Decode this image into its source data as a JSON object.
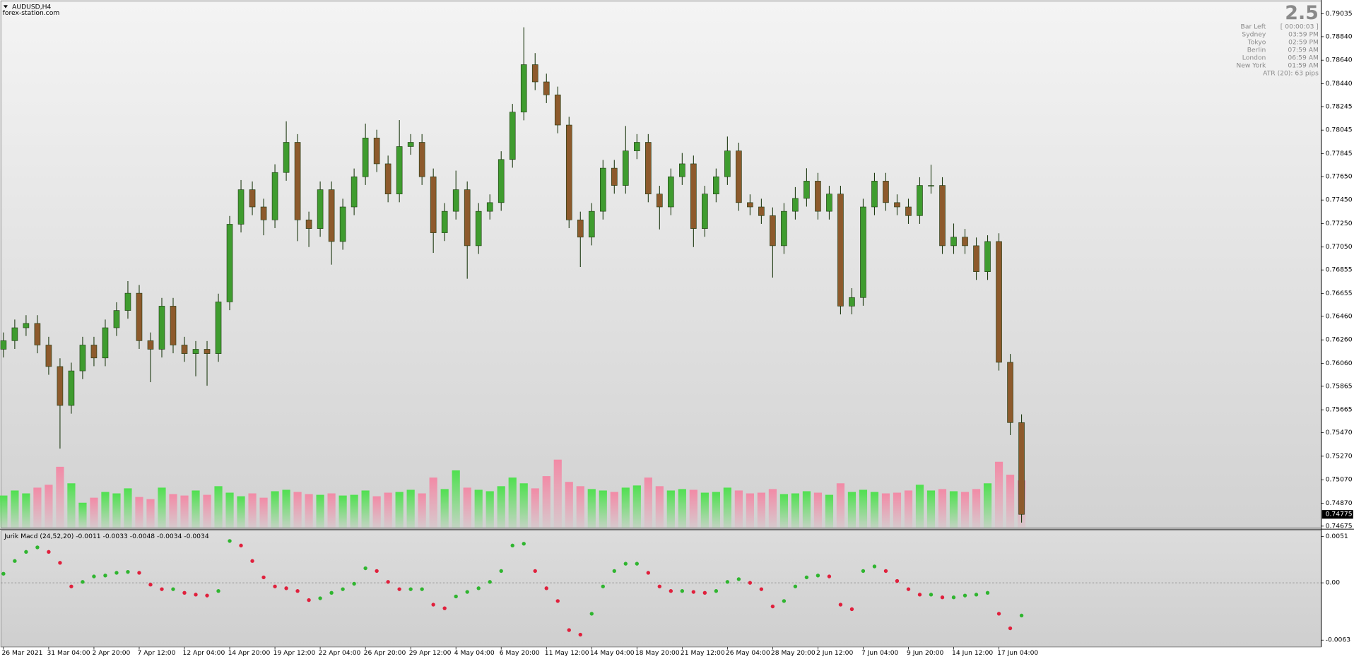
{
  "chart_data": [
    {
      "type": "candlestick",
      "title": "AUDUSD,H4",
      "subtitle": "forex-station.com",
      "categories": [
        "26 Mar 2021",
        null,
        null,
        null,
        "31 Mar 04:00",
        null,
        null,
        null,
        "2 Apr 20:00",
        null,
        null,
        null,
        "7 Apr 12:00",
        null,
        null,
        null,
        "12 Apr 04:00",
        null,
        null,
        null,
        "14 Apr 20:00",
        null,
        null,
        null,
        "19 Apr 12:00",
        null,
        null,
        null,
        "22 Apr 04:00",
        null,
        null,
        null,
        "26 Apr 20:00",
        null,
        null,
        null,
        "29 Apr 12:00",
        null,
        null,
        null,
        "4 May 04:00",
        null,
        null,
        null,
        "6 May 20:00",
        null,
        null,
        null,
        "11 May 12:00",
        null,
        null,
        null,
        "14 May 04:00",
        null,
        null,
        null,
        "18 May 20:00",
        null,
        null,
        null,
        "21 May 12:00",
        null,
        null,
        null,
        "26 May 04:00",
        null,
        null,
        null,
        "28 May 20:00",
        null,
        null,
        null,
        "2 Jun 12:00",
        null,
        null,
        null,
        "7 Jun 04:00",
        null,
        null,
        null,
        "9 Jun 20:00",
        null,
        null,
        null,
        "14 Jun 12:00",
        null,
        null,
        null,
        "17 Jun 04:00",
        null,
        null
      ],
      "open": [
        0.7618,
        0.76253,
        0.76363,
        0.764,
        0.76216,
        0.76033,
        0.75702,
        0.75996,
        0.76216,
        0.76106,
        0.76363,
        0.7651,
        0.76657,
        0.76253,
        0.7618,
        0.76547,
        0.76216,
        0.76143,
        0.7618,
        0.76143,
        0.76583,
        0.77244,
        0.77538,
        0.77391,
        0.77281,
        0.77684,
        0.77941,
        0.77281,
        0.77207,
        0.77538,
        0.77097,
        0.77391,
        0.77648,
        0.77978,
        0.77758,
        0.77501,
        0.77905,
        0.77941,
        0.77648,
        0.77171,
        0.77354,
        0.77538,
        0.77061,
        0.77354,
        0.77428,
        0.77795,
        0.78198,
        0.78602,
        0.78455,
        0.78345,
        0.78088,
        0.77281,
        0.77134,
        0.77354,
        0.77721,
        0.77574,
        0.77868,
        0.77941,
        0.77501,
        0.77391,
        0.77648,
        0.77758,
        0.77207,
        0.77501,
        0.77648,
        0.77868,
        0.77428,
        0.77391,
        0.77317,
        0.77061,
        0.77354,
        0.77464,
        0.77611,
        0.77354,
        0.77501,
        0.76547,
        0.7662,
        0.77391,
        0.77611,
        0.77428,
        0.77391,
        0.77317,
        0.77574,
        0.77574,
        0.77061,
        0.77134,
        0.77061,
        0.7684,
        0.77097,
        0.76069,
        0.75556
      ],
      "high": [
        0.76323,
        0.76433,
        0.7647,
        0.7647,
        0.76286,
        0.76103,
        0.76066,
        0.76286,
        0.76286,
        0.76433,
        0.7658,
        0.7676,
        0.76727,
        0.76323,
        0.76617,
        0.76617,
        0.76286,
        0.7625,
        0.7625,
        0.76653,
        0.77314,
        0.7762,
        0.77608,
        0.77461,
        0.77754,
        0.7812,
        0.78011,
        0.77351,
        0.77608,
        0.77608,
        0.77461,
        0.77718,
        0.781,
        0.78048,
        0.77828,
        0.7813,
        0.78011,
        0.78011,
        0.77718,
        0.77424,
        0.777,
        0.77608,
        0.77424,
        0.77498,
        0.77865,
        0.78268,
        0.7892,
        0.787,
        0.78525,
        0.78415,
        0.78158,
        0.77351,
        0.77424,
        0.77791,
        0.77791,
        0.7808,
        0.78011,
        0.78011,
        0.77571,
        0.77718,
        0.7785,
        0.77828,
        0.77571,
        0.77718,
        0.7799,
        0.77938,
        0.77498,
        0.77461,
        0.77387,
        0.77424,
        0.7756,
        0.7772,
        0.77681,
        0.77571,
        0.77571,
        0.767,
        0.77461,
        0.77681,
        0.77681,
        0.77498,
        0.77461,
        0.77644,
        0.7775,
        0.77644,
        0.7725,
        0.77204,
        0.77131,
        0.7715,
        0.77167,
        0.7614,
        0.75626
      ],
      "low": [
        0.7611,
        0.76183,
        0.76293,
        0.76146,
        0.75963,
        0.75335,
        0.75632,
        0.75926,
        0.76036,
        0.76036,
        0.76293,
        0.7644,
        0.76183,
        0.759,
        0.7611,
        0.76146,
        0.76073,
        0.7595,
        0.7587,
        0.76073,
        0.76513,
        0.77174,
        0.77321,
        0.7715,
        0.77211,
        0.77614,
        0.771,
        0.7705,
        0.77137,
        0.769,
        0.77027,
        0.77321,
        0.77578,
        0.77688,
        0.77431,
        0.77431,
        0.77835,
        0.77578,
        0.77,
        0.77101,
        0.77284,
        0.7678,
        0.76991,
        0.77284,
        0.77358,
        0.77725,
        0.78128,
        0.78385,
        0.78275,
        0.78018,
        0.77211,
        0.7688,
        0.77064,
        0.77284,
        0.77504,
        0.77504,
        0.77798,
        0.77431,
        0.772,
        0.77321,
        0.77578,
        0.7705,
        0.77137,
        0.77431,
        0.77578,
        0.77358,
        0.77321,
        0.77247,
        0.7679,
        0.76991,
        0.77284,
        0.77394,
        0.77284,
        0.77284,
        0.76477,
        0.76477,
        0.7655,
        0.77321,
        0.77358,
        0.77321,
        0.77247,
        0.77247,
        0.77504,
        0.76991,
        0.76991,
        0.76991,
        0.7677,
        0.7677,
        0.75999,
        0.7545,
        0.74705
      ],
      "close": [
        0.76253,
        0.76363,
        0.764,
        0.76216,
        0.76033,
        0.75702,
        0.75996,
        0.76216,
        0.76106,
        0.76363,
        0.7651,
        0.76657,
        0.76253,
        0.7618,
        0.76547,
        0.76216,
        0.76143,
        0.7618,
        0.76143,
        0.76583,
        0.77244,
        0.77538,
        0.77391,
        0.77281,
        0.77684,
        0.77941,
        0.77281,
        0.77207,
        0.77538,
        0.77097,
        0.77391,
        0.77648,
        0.77978,
        0.77758,
        0.77501,
        0.77905,
        0.77941,
        0.77648,
        0.77171,
        0.77354,
        0.77538,
        0.77061,
        0.77354,
        0.77428,
        0.77795,
        0.78198,
        0.78602,
        0.78455,
        0.78345,
        0.78088,
        0.77281,
        0.77134,
        0.77354,
        0.77721,
        0.77574,
        0.77868,
        0.77941,
        0.77501,
        0.77391,
        0.77648,
        0.77758,
        0.77207,
        0.77501,
        0.77648,
        0.77868,
        0.77428,
        0.77391,
        0.77317,
        0.77061,
        0.77354,
        0.77464,
        0.77611,
        0.77354,
        0.77501,
        0.76547,
        0.7662,
        0.77391,
        0.77611,
        0.77428,
        0.77391,
        0.77317,
        0.77574,
        0.77574,
        0.77061,
        0.77134,
        0.77061,
        0.7684,
        0.77097,
        0.76069,
        0.75556,
        0.74775
      ],
      "volume": [
        4500,
        5200,
        4800,
        5600,
        6000,
        8500,
        6200,
        3500,
        4200,
        5000,
        4800,
        5500,
        4300,
        4000,
        5600,
        4700,
        4500,
        5200,
        4600,
        5800,
        4900,
        4400,
        4800,
        4200,
        5100,
        5300,
        5000,
        4700,
        4600,
        4800,
        4500,
        4600,
        5200,
        4400,
        4900,
        5000,
        5300,
        4800,
        7000,
        5400,
        8000,
        5600,
        5300,
        5100,
        5800,
        7000,
        6200,
        5500,
        7200,
        9500,
        6400,
        5800,
        5400,
        5200,
        5000,
        5600,
        5900,
        7000,
        5800,
        5200,
        5400,
        5300,
        4900,
        5000,
        5600,
        5200,
        4800,
        4900,
        5400,
        4700,
        4800,
        5100,
        4900,
        4600,
        6200,
        5000,
        5300,
        5000,
        4800,
        4900,
        5200,
        6000,
        5200,
        5400,
        5100,
        5000,
        5400,
        6200,
        9200,
        7400,
        6600
      ],
      "vlim": [
        0,
        12000
      ],
      "ylim": [
        0.7466,
        0.7913
      ],
      "yticks": [
        0.79035,
        {
          "value": 0.7884,
          "label": "0.78840"
        },
        {
          "value": 0.7864,
          "label": "0.78640"
        },
        {
          "value": 0.7844,
          "label": "0.78440"
        },
        0.78245,
        0.78045,
        0.77845,
        {
          "value": 0.7765,
          "label": "0.77650"
        },
        {
          "value": 0.7745,
          "label": "0.77450"
        },
        {
          "value": 0.7725,
          "label": "0.77250"
        },
        {
          "value": 0.7705,
          "label": "0.77050"
        },
        0.76855,
        0.76655,
        {
          "value": 0.7646,
          "label": "0.76460"
        },
        {
          "value": 0.7626,
          "label": "0.76260"
        },
        {
          "value": 0.7606,
          "label": "0.76060"
        },
        0.75865,
        0.75665,
        {
          "value": 0.7547,
          "label": "0.75470"
        },
        {
          "value": 0.7527,
          "label": "0.75270"
        },
        {
          "value": 0.7507,
          "label": "0.75070"
        },
        {
          "value": 0.7487,
          "label": "0.74870"
        },
        0.74675
      ],
      "last_price": 0.74775,
      "colors": {
        "up": "#3f9c2f",
        "down": "#8d5a2c",
        "wick": "#1e3a12",
        "volume_up": "#4fe04f",
        "volume_down": "#f28aa6"
      }
    },
    {
      "type": "dots",
      "title": "Jurik Macd (24,52,20) -0.0011 -0.0033 -0.0048 -0.0034 -0.0034",
      "values": [
        0.001,
        0.0024,
        0.0034,
        0.0039,
        0.0034,
        0.0022,
        -0.0004,
        0.0001,
        0.0007,
        0.0008,
        0.0011,
        0.0012,
        0.0011,
        -0.0002,
        -0.0007,
        -0.0007,
        -0.0011,
        -0.0013,
        -0.0014,
        -0.0009,
        0.0046,
        0.0041,
        0.0024,
        0.0006,
        -0.0004,
        -0.0006,
        -0.0009,
        -0.0019,
        -0.0017,
        -0.0011,
        -0.0007,
        -0.0001,
        0.0016,
        0.0013,
        0.0001,
        -0.0007,
        -0.0007,
        -0.0007,
        -0.0024,
        -0.0028,
        -0.0015,
        -0.001,
        -0.0006,
        0.0001,
        0.0013,
        0.0041,
        0.0043,
        0.0013,
        -0.0006,
        -0.002,
        -0.0052,
        -0.0057,
        -0.0034,
        -0.0004,
        0.0013,
        0.0021,
        0.0021,
        0.0011,
        -0.0004,
        -0.0009,
        -0.0009,
        -0.001,
        -0.0011,
        -0.0009,
        0.0001,
        0.0004,
        0,
        -0.0007,
        -0.0026,
        -0.002,
        -0.0004,
        0.0006,
        0.0008,
        0.0007,
        -0.0024,
        -0.0029,
        0.0013,
        0.0018,
        0.0013,
        0.0002,
        -0.0007,
        -0.0013,
        -0.0013,
        -0.0016,
        -0.0016,
        -0.0014,
        -0.0013,
        -0.0011,
        -0.0034,
        -0.005,
        -0.0036
      ],
      "ylim": [
        -0.00705,
        0.00566
      ],
      "yticks": [
        0.0051,
        {
          "value": 0,
          "label": "0.00"
        },
        -0.0063
      ],
      "zero_line": true,
      "colors": {
        "up": "#2fb52f",
        "down": "#e0203c"
      }
    }
  ],
  "info_panel": {
    "value": "2.5",
    "rows": [
      [
        "Bar Left",
        "[ 00:00:03 ]"
      ],
      [
        "Sydney",
        "03:59 PM"
      ],
      [
        "Tokyo",
        "02:59 PM"
      ],
      [
        "Berlin",
        "07:59 AM"
      ],
      [
        "London",
        "06:59 AM"
      ],
      [
        "New York",
        "01:59 AM"
      ]
    ],
    "atr": "ATR (20): 63 pips"
  }
}
